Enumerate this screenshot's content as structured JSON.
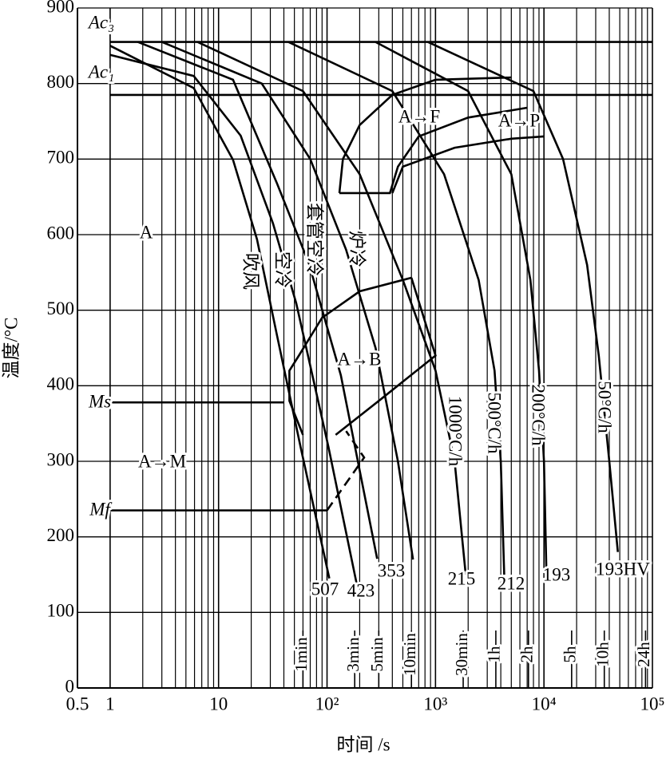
{
  "chart_data": {
    "type": "line",
    "x_label": "时间 /s",
    "y_label": "温度/°C",
    "xscale": "log",
    "xlim": [
      0.5,
      100000
    ],
    "xticks": [
      0.5,
      1,
      10,
      {
        "value": 100,
        "label": "10²"
      },
      {
        "value": 1000,
        "label": "10³"
      },
      {
        "value": 10000,
        "label": "10⁴"
      },
      {
        "value": 100000,
        "label": "10⁵"
      }
    ],
    "minor_xticks": [
      2,
      3,
      4,
      5,
      6,
      7,
      8,
      9,
      20,
      30,
      40,
      50,
      60,
      70,
      80,
      90,
      200,
      300,
      400,
      500,
      600,
      700,
      800,
      900,
      2000,
      3000,
      4000,
      5000,
      6000,
      7000,
      8000,
      9000,
      20000,
      30000,
      40000,
      50000,
      60000,
      70000,
      80000,
      90000
    ],
    "ylim": [
      0,
      900
    ],
    "yticks": [
      0,
      100,
      200,
      300,
      400,
      500,
      600,
      700,
      800,
      900
    ],
    "grid": true,
    "color": "#000000",
    "series": [
      {
        "name": "吹风",
        "end_label": "507",
        "x": [
          1,
          5.9,
          13.6,
          22.6,
          34.5,
          57,
          105
        ],
        "values": [
          850,
          794,
          699,
          594,
          467,
          319,
          145
        ]
      },
      {
        "name": "空冷",
        "end_label": "423",
        "x": [
          1,
          5.9,
          16,
          31.7,
          52,
          103,
          190
        ],
        "values": [
          838,
          810,
          731,
          615,
          509,
          319,
          134
        ]
      },
      {
        "name": "套管空冷",
        "end_label": "353",
        "x": [
          1.8,
          13.6,
          34.5,
          68,
          134,
          290
        ],
        "values": [
          855,
          805,
          668,
          562,
          414,
          171
        ]
      },
      {
        "name": "炉冷",
        "x": [
          3,
          25,
          70,
          150,
          280,
          450,
          620
        ],
        "values": [
          855,
          800,
          700,
          580,
          450,
          300,
          170
        ]
      },
      {
        "name": "1000°C/h",
        "end_label": "215",
        "x": [
          6.4,
          60,
          200,
          500,
          1000,
          1500,
          1900
        ],
        "values": [
          855,
          790,
          680,
          540,
          420,
          300,
          150
        ]
      },
      {
        "name": "500°C/h",
        "end_label": "212",
        "x": [
          44,
          400,
          1200,
          2500,
          3500,
          4000,
          4300
        ],
        "values": [
          855,
          790,
          680,
          540,
          420,
          300,
          150
        ]
      },
      {
        "name": "200°C/h",
        "end_label": "193",
        "x": [
          280,
          2000,
          5000,
          7500,
          9000,
          10000,
          10500
        ],
        "values": [
          855,
          790,
          680,
          540,
          420,
          300,
          160
        ]
      },
      {
        "name": "50°C/h",
        "end_label": "193HV",
        "x": [
          850,
          8000,
          15000,
          25000,
          32000,
          40000,
          48000
        ],
        "values": [
          855,
          790,
          700,
          560,
          440,
          300,
          180
        ]
      }
    ],
    "boundaries": [
      {
        "x": [
          130,
          140,
          200,
          400,
          1000,
          5000
        ],
        "values": [
          655,
          700,
          745,
          785,
          805,
          808
        ]
      },
      {
        "x": [
          130,
          380,
          450,
          700,
          2000,
          7000
        ],
        "values": [
          655,
          655,
          690,
          730,
          755,
          768
        ]
      },
      {
        "x": [
          400,
          500,
          1500,
          5000,
          10000
        ],
        "values": [
          655,
          690,
          715,
          727,
          730
        ]
      },
      {
        "x": [
          60,
          45,
          45,
          55,
          90,
          200,
          600
        ],
        "values": [
          335,
          380,
          420,
          440,
          490,
          525,
          543
        ]
      },
      {
        "x": [
          600,
          1000,
          300,
          120
        ],
        "values": [
          543,
          440,
          380,
          335
        ]
      },
      {
        "x": [
          100,
          220,
          150
        ],
        "values": [
          235,
          305,
          340
        ],
        "dashed": true
      }
    ],
    "reference_lines": [
      {
        "label": "Ac₃",
        "x": [
          1,
          100000
        ],
        "values": [
          855,
          855
        ]
      },
      {
        "label": "Ac₁",
        "x": [
          1,
          100000
        ],
        "values": [
          785,
          785
        ]
      },
      {
        "label": "Ms",
        "x": [
          1,
          40
        ],
        "values": [
          378,
          378
        ]
      },
      {
        "label": "Mf",
        "x": [
          1,
          100
        ],
        "values": [
          235,
          235
        ]
      }
    ],
    "time_markers": [
      {
        "value": 60,
        "label": "1min"
      },
      {
        "value": 180,
        "label": "3min"
      },
      {
        "value": 300,
        "label": "5min"
      },
      {
        "value": 600,
        "label": "10min"
      },
      {
        "value": 1800,
        "label": "30min"
      },
      {
        "value": 3600,
        "label": "1h"
      },
      {
        "value": 7200,
        "label": "2h"
      },
      {
        "value": 18000,
        "label": "5h"
      },
      {
        "value": 36000,
        "label": "10h"
      },
      {
        "value": 86400,
        "label": "24h"
      }
    ],
    "annotations": [
      "A",
      "A→F",
      "A→P",
      "A→B",
      "A→M"
    ]
  }
}
